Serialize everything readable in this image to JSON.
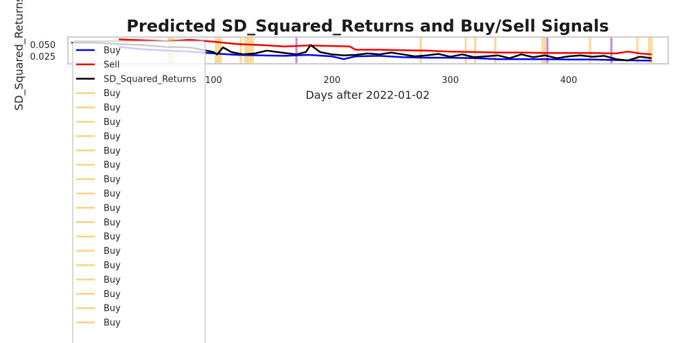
{
  "chart_data": {
    "type": "line",
    "title": "Predicted SD_Squared_Returns and Buy/Sell Signals",
    "xlabel": "Days after 2022-01-02",
    "ylabel": "SD_Squared_Returns",
    "xlim": [
      -23,
      484
    ],
    "ylim": [
      0.01,
      0.067
    ],
    "x_ticks": [
      100,
      200,
      300,
      400
    ],
    "y_ticks": [
      0.025,
      0.05
    ],
    "y_tick_labels": [
      "0.025",
      "0.050"
    ],
    "grid": false,
    "legend_position": "upper-left",
    "series": [
      {
        "name": "Buy",
        "color": "#0000ee",
        "x": [
          20,
          40,
          60,
          80,
          100,
          120,
          140,
          160,
          180,
          200,
          210,
          220,
          240,
          260,
          280,
          300,
          320,
          340,
          360,
          380,
          400,
          420,
          440,
          460,
          470
        ],
        "y": [
          0.046,
          0.041,
          0.038,
          0.036,
          0.032,
          0.029,
          0.028,
          0.027,
          0.029,
          0.026,
          0.02,
          0.026,
          0.027,
          0.024,
          0.023,
          0.023,
          0.022,
          0.02,
          0.02,
          0.02,
          0.019,
          0.019,
          0.018,
          0.017,
          0.017
        ]
      },
      {
        "name": "Sell",
        "color": "#ee0000",
        "x": [
          20,
          40,
          60,
          80,
          100,
          120,
          140,
          160,
          180,
          200,
          215,
          220,
          240,
          260,
          280,
          300,
          320,
          340,
          360,
          380,
          400,
          420,
          440,
          450,
          460,
          470
        ],
        "y": [
          0.062,
          0.06,
          0.058,
          0.061,
          0.057,
          0.052,
          0.05,
          0.047,
          0.049,
          0.048,
          0.047,
          0.04,
          0.04,
          0.039,
          0.038,
          0.036,
          0.035,
          0.034,
          0.034,
          0.033,
          0.033,
          0.033,
          0.032,
          0.036,
          0.032,
          0.03
        ]
      },
      {
        "name": "SD_Squared_Returns",
        "color": "#000000",
        "x": [
          -20,
          0,
          20,
          40,
          60,
          80,
          100,
          103,
          108,
          115,
          125,
          135,
          145,
          160,
          170,
          178,
          182,
          190,
          200,
          210,
          220,
          230,
          240,
          250,
          260,
          270,
          280,
          290,
          300,
          310,
          320,
          330,
          340,
          350,
          360,
          370,
          380,
          390,
          400,
          410,
          420,
          430,
          440,
          450,
          460,
          470
        ],
        "y": [
          0.055,
          0.055,
          0.052,
          0.05,
          0.046,
          0.045,
          0.035,
          0.03,
          0.045,
          0.035,
          0.03,
          0.032,
          0.038,
          0.033,
          0.03,
          0.035,
          0.05,
          0.035,
          0.03,
          0.028,
          0.029,
          0.032,
          0.03,
          0.034,
          0.03,
          0.026,
          0.028,
          0.031,
          0.025,
          0.03,
          0.024,
          0.026,
          0.028,
          0.022,
          0.03,
          0.024,
          0.028,
          0.022,
          0.026,
          0.028,
          0.025,
          0.027,
          0.02,
          0.017,
          0.025,
          0.022
        ]
      }
    ],
    "signals": {
      "buy_color": "#ffa500",
      "sell_color": "#9933cc",
      "buy_days": [
        62,
        64,
        66,
        102,
        104,
        106,
        123,
        127,
        129,
        131,
        133,
        275,
        313,
        321,
        338,
        378,
        380,
        418,
        458,
        468,
        470
      ],
      "sell_days": [
        170,
        382,
        436
      ]
    },
    "legend_entries": [
      "Buy",
      "Sell",
      "SD_Squared_Returns",
      "Buy",
      "Buy",
      "Buy",
      "Buy",
      "Buy",
      "Buy",
      "Buy",
      "Buy",
      "Buy",
      "Buy",
      "Buy",
      "Buy",
      "Buy",
      "Buy",
      "Buy",
      "Buy",
      "Buy"
    ]
  }
}
